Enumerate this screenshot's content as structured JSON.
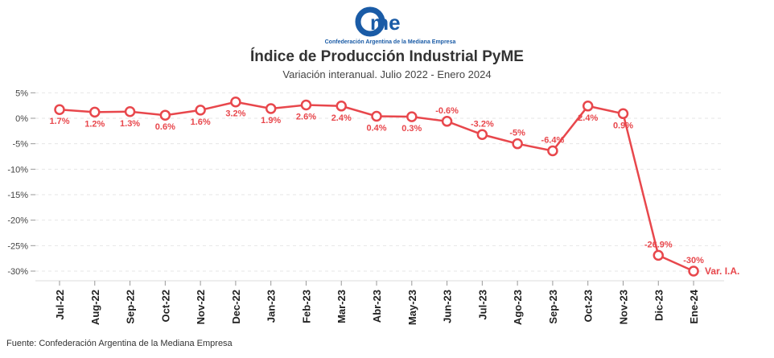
{
  "header": {
    "logo_text": "cAme",
    "logo_caption": "Confederación Argentina de la Mediana Empresa",
    "title": "Índice de Producción Industrial PyME",
    "subtitle": "Variación interanual. Julio 2022 - Enero 2024"
  },
  "footer": {
    "source": "Fuente: Confederación Argentina de la Mediana Empresa"
  },
  "colors": {
    "series": "#e8474c",
    "logo": "#1a5ba6"
  },
  "chart_data": {
    "type": "line",
    "title": "Índice de Producción Industrial PyME",
    "subtitle": "Variación interanual. Julio 2022 - Enero 2024",
    "categories": [
      "Jul-22",
      "Aug-22",
      "Sep-22",
      "Oct-22",
      "Nov-22",
      "Dec-22",
      "Jan-23",
      "Feb-23",
      "Mar-23",
      "Abr-23",
      "May-23",
      "Jun-23",
      "Jul-23",
      "Ago-23",
      "Sep-23",
      "Oct-23",
      "Nov-23",
      "Dic-23",
      "Ene-24"
    ],
    "series": [
      {
        "name": "Var. I.A.",
        "values": [
          1.7,
          1.2,
          1.3,
          0.6,
          1.6,
          3.2,
          1.9,
          2.6,
          2.4,
          0.4,
          0.3,
          -0.6,
          -3.2,
          -5,
          -6.4,
          2.4,
          0.9,
          -26.9,
          -30
        ],
        "labels": [
          "1.7%",
          "1.2%",
          "1.3%",
          "0.6%",
          "1.6%",
          "3.2%",
          "1.9%",
          "2.6%",
          "2.4%",
          "0.4%",
          "0.3%",
          "-0.6%",
          "-3.2%",
          "-5%",
          "-6.4%",
          "2.4%",
          "0.9%",
          "-26.9%",
          "-30%"
        ]
      }
    ],
    "yticks": [
      5,
      0,
      -5,
      -10,
      -15,
      -20,
      -25,
      -30
    ],
    "ytick_labels": [
      "5%",
      "0%",
      "-5%",
      "-10%",
      "-15%",
      "-20%",
      "-25%",
      "-30%"
    ],
    "ylim": [
      -32,
      6
    ],
    "grid": true,
    "legend": "end-of-line"
  }
}
